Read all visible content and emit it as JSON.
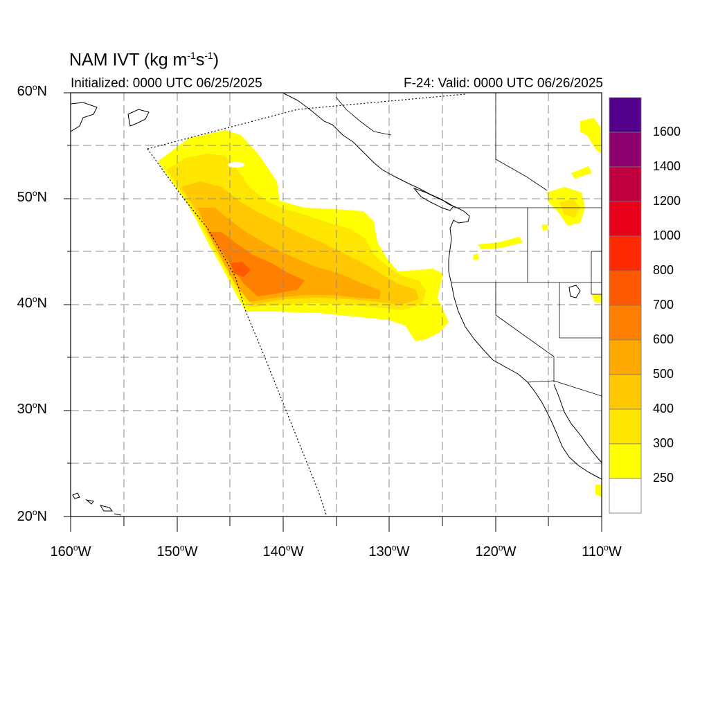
{
  "title": {
    "text": "NAM IVT (kg m",
    "unit_exp1": "-1",
    "unit_mid": "s",
    "unit_exp2": "-1",
    "close": ")"
  },
  "subtitle_left": "Initialized: 0000 UTC 06/25/2025",
  "subtitle_right": "F-24: Valid: 0000 UTC 06/26/2025",
  "lat_labels": [
    {
      "value": "60",
      "suffix": "N"
    },
    {
      "value": "50",
      "suffix": "N"
    },
    {
      "value": "40",
      "suffix": "N"
    },
    {
      "value": "30",
      "suffix": "N"
    },
    {
      "value": "20",
      "suffix": "N"
    }
  ],
  "lon_labels": [
    {
      "value": "160",
      "suffix": "W"
    },
    {
      "value": "150",
      "suffix": "W"
    },
    {
      "value": "140",
      "suffix": "W"
    },
    {
      "value": "130",
      "suffix": "W"
    },
    {
      "value": "120",
      "suffix": "W"
    },
    {
      "value": "110",
      "suffix": "W"
    }
  ],
  "colorbar": {
    "labels": [
      "1600",
      "1400",
      "1200",
      "1000",
      "800",
      "700",
      "600",
      "500",
      "400",
      "300",
      "250"
    ],
    "colors_top_to_bottom": [
      "#52008c",
      "#8c006e",
      "#c0003e",
      "#e8001a",
      "#ff2a00",
      "#ff5a00",
      "#ff8000",
      "#ffa800",
      "#ffc800",
      "#ffe600",
      "#ffff00",
      "#ffffff"
    ]
  },
  "map_extent": {
    "lon_min": -160,
    "lon_max": -110,
    "lat_min": 20,
    "lat_max": 60
  },
  "ivt_colors": {
    "250": "#ffff00",
    "300": "#ffe600",
    "400": "#ffc800",
    "500": "#ffa800",
    "600": "#ff8000",
    "700": "#ff5a00"
  }
}
